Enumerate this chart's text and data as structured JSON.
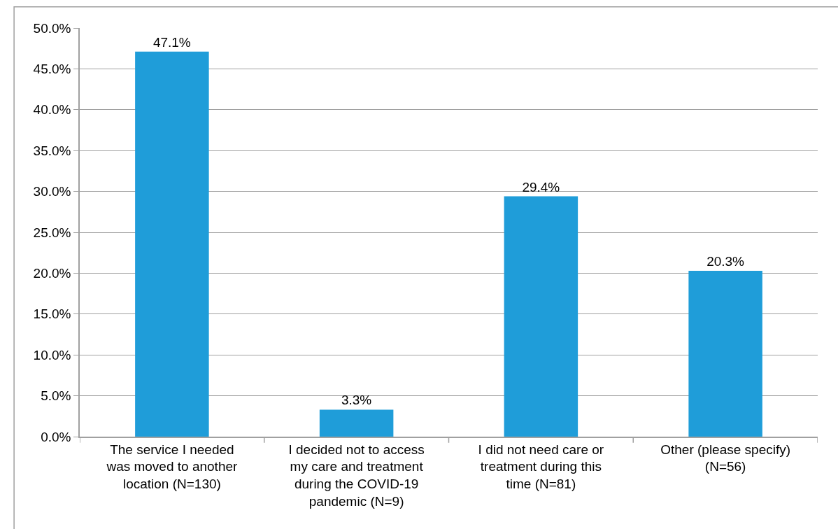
{
  "chart_data": {
    "type": "bar",
    "categories": [
      "The service I needed was moved to another location (N=130)",
      "I decided not to access my care and treatment during the COVID-19 pandemic (N=9)",
      "I did not need care or treatment during this time (N=81)",
      "Other (please specify) (N=56)"
    ],
    "values": [
      47.1,
      3.3,
      29.4,
      20.3
    ],
    "value_labels": [
      "47.1%",
      "3.3%",
      "29.4%",
      "20.3%"
    ],
    "color": "#1f9dd9",
    "ylim": [
      0,
      50
    ],
    "yticks": [
      {
        "value": 0,
        "label": "0.0%"
      },
      {
        "value": 5,
        "label": "5.0%"
      },
      {
        "value": 10,
        "label": "10.0%"
      },
      {
        "value": 15,
        "label": "15.0%"
      },
      {
        "value": 20,
        "label": "20.0%"
      },
      {
        "value": 25,
        "label": "25.0%"
      },
      {
        "value": 30,
        "label": "30.0%"
      },
      {
        "value": 35,
        "label": "35.0%"
      },
      {
        "value": 40,
        "label": "40.0%"
      },
      {
        "value": 45,
        "label": "45.0%"
      },
      {
        "value": 50,
        "label": "50.0%"
      }
    ],
    "grid": "y"
  }
}
